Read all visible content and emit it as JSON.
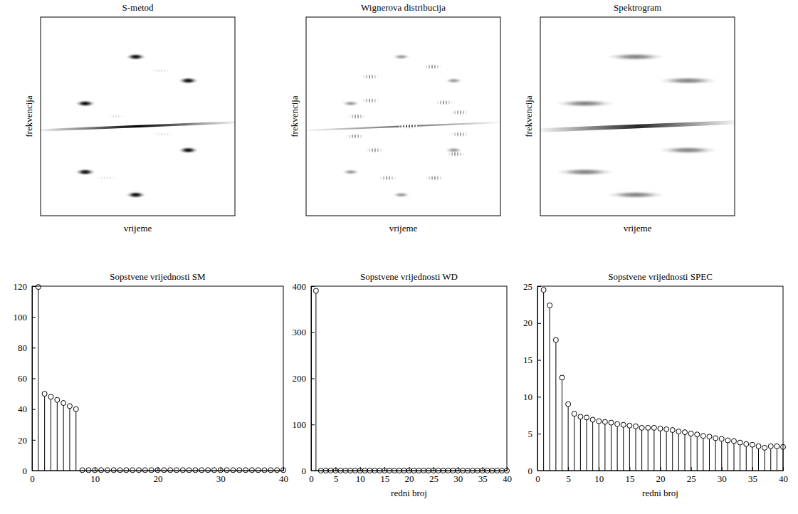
{
  "chart_data": [
    {
      "type": "image",
      "title": "S-metod",
      "xlabel": "vrijeme",
      "ylabel": "frekvencija",
      "xlim": [
        0,
        1
      ],
      "ylim": [
        0,
        1
      ],
      "tick_labels": false,
      "color": "#000000",
      "atoms": {
        "t": [
          0.49,
          0.76,
          0.23,
          0.76,
          0.23,
          0.49
        ],
        "f": [
          0.8,
          0.68,
          0.565,
          0.33,
          0.22,
          0.105
        ],
        "duration": 0.1,
        "bandwidth": 0.035,
        "amplitude": 1
      },
      "chirp": {
        "t": [
          0,
          1
        ],
        "f": [
          0.43,
          0.47
        ],
        "bandwidth": 0.012,
        "amplitude": 1
      },
      "cross_terms": {
        "t": [
          0.62,
          0.39,
          0.63,
          0.34
        ],
        "f": [
          0.73,
          0.5,
          0.41,
          0.19
        ],
        "duration": 0.12,
        "bandwidth": 0.02,
        "amplitude": 0.15
      }
    },
    {
      "type": "image",
      "title": "Wignerova distribucija",
      "xlabel": "vrijeme",
      "ylabel": "frekvencija",
      "xlim": [
        0,
        1
      ],
      "ylim": [
        0,
        1
      ],
      "tick_labels": false,
      "color": "#000000",
      "atoms": {
        "t": [
          0.49,
          0.76,
          0.23,
          0.76,
          0.23,
          0.49
        ],
        "f": [
          0.8,
          0.68,
          0.565,
          0.33,
          0.22,
          0.105
        ],
        "duration": 0.09,
        "bandwidth": 0.03,
        "amplitude": 0.4
      },
      "chirp": {
        "t": [
          0,
          1
        ],
        "f": [
          0.43,
          0.47
        ],
        "bandwidth": 0.008,
        "amplitude": 0.6
      },
      "cross_terms": {
        "t": [
          0.53,
          0.26,
          0.25,
          0.79,
          0.79,
          0.33,
          0.71,
          0.35,
          0.77,
          0.42,
          0.66,
          0.33,
          0.65
        ],
        "f": [
          0.45,
          0.5,
          0.4,
          0.52,
          0.41,
          0.58,
          0.57,
          0.33,
          0.31,
          0.19,
          0.19,
          0.7,
          0.75
        ],
        "duration": 0.1,
        "bandwidth": 0.03,
        "amplitude": 0.45
      }
    },
    {
      "type": "image",
      "title": "Spektrogram",
      "xlabel": "vrijeme",
      "ylabel": "frekvencija",
      "xlim": [
        0,
        1
      ],
      "ylim": [
        0,
        1
      ],
      "tick_labels": false,
      "color": "#000000",
      "atoms": {
        "t": [
          0.49,
          0.76,
          0.23,
          0.76,
          0.23,
          0.49
        ],
        "f": [
          0.8,
          0.68,
          0.565,
          0.33,
          0.22,
          0.105
        ],
        "duration": 0.3,
        "bandwidth": 0.04,
        "amplitude": 0.5
      },
      "chirp": {
        "t": [
          0,
          1
        ],
        "f": [
          0.43,
          0.47
        ],
        "bandwidth": 0.02,
        "amplitude": 0.85
      }
    },
    {
      "type": "stem",
      "title": "Sopstvene vrijednosti SM",
      "marker": "circle",
      "color": "#000000",
      "x": [
        1,
        2,
        3,
        4,
        5,
        6,
        7,
        8,
        9,
        10,
        11,
        12,
        13,
        14,
        15,
        16,
        17,
        18,
        19,
        20,
        21,
        22,
        23,
        24,
        25,
        26,
        27,
        28,
        29,
        30,
        31,
        32,
        33,
        34,
        35,
        36,
        37,
        38,
        39,
        40
      ],
      "values": [
        119.5,
        50,
        48,
        46,
        44,
        42,
        40,
        0.3,
        0.3,
        0.3,
        0.3,
        0.3,
        0.3,
        0.3,
        0.3,
        0.3,
        0.3,
        0.3,
        0.3,
        0.3,
        0.3,
        0.3,
        0.3,
        0.3,
        0.3,
        0.3,
        0.3,
        0.3,
        0.3,
        0.3,
        0.3,
        0.3,
        0.3,
        0.3,
        0.3,
        0.3,
        0.3,
        0.3,
        0.3,
        0.3
      ],
      "xlim": [
        0,
        40
      ],
      "xticks": [
        0,
        10,
        20,
        30,
        40
      ],
      "ylim": [
        0,
        120
      ],
      "yticks": [
        0,
        20,
        40,
        60,
        80,
        100,
        120
      ]
    },
    {
      "type": "stem",
      "title": "Sopstvene vrijednosti WD",
      "xlabel": "redni broj",
      "marker": "circle",
      "color": "#000000",
      "x": [
        1,
        2,
        3,
        4,
        5,
        6,
        7,
        8,
        9,
        10,
        11,
        12,
        13,
        14,
        15,
        16,
        17,
        18,
        19,
        20,
        21,
        22,
        23,
        24,
        25,
        26,
        27,
        28,
        29,
        30,
        31,
        32,
        33,
        34,
        35,
        36,
        37,
        38,
        39,
        40
      ],
      "values": [
        390,
        0,
        0,
        0,
        0,
        0,
        0,
        0,
        0,
        0,
        0,
        0,
        0,
        0,
        0,
        0,
        0,
        0,
        0,
        0,
        0,
        0,
        0,
        0,
        0,
        0,
        0,
        0,
        0,
        0,
        0,
        0,
        0,
        0,
        0,
        0,
        0,
        0,
        0,
        0
      ],
      "xlim": [
        0,
        40
      ],
      "xticks": [
        0,
        5,
        10,
        15,
        20,
        25,
        30,
        35,
        40
      ],
      "ylim": [
        0,
        400
      ],
      "yticks": [
        0,
        100,
        200,
        300,
        400
      ]
    },
    {
      "type": "stem",
      "title": "Sopstvene vrijednosti SPEC",
      "xlabel": "redni broj",
      "marker": "circle",
      "color": "#000000",
      "x": [
        1,
        2,
        3,
        4,
        5,
        6,
        7,
        8,
        9,
        10,
        11,
        12,
        13,
        14,
        15,
        16,
        17,
        18,
        19,
        20,
        21,
        22,
        23,
        24,
        25,
        26,
        27,
        28,
        29,
        30,
        31,
        32,
        33,
        34,
        35,
        36,
        37,
        38,
        39,
        40
      ],
      "values": [
        24.5,
        22.4,
        17.7,
        12.6,
        9.0,
        7.7,
        7.3,
        7.2,
        6.9,
        6.7,
        6.6,
        6.5,
        6.3,
        6.2,
        6.1,
        6.0,
        5.8,
        5.8,
        5.8,
        5.7,
        5.6,
        5.5,
        5.3,
        5.2,
        5.0,
        4.9,
        4.7,
        4.6,
        4.4,
        4.3,
        4.1,
        4.0,
        3.8,
        3.6,
        3.5,
        3.3,
        3.1,
        3.3,
        3.3,
        3.2
      ],
      "xlim": [
        0,
        40
      ],
      "xticks": [
        0,
        5,
        10,
        15,
        20,
        25,
        30,
        35,
        40
      ],
      "ylim": [
        0,
        25
      ],
      "yticks": [
        0,
        5,
        10,
        15,
        20,
        25
      ]
    }
  ]
}
